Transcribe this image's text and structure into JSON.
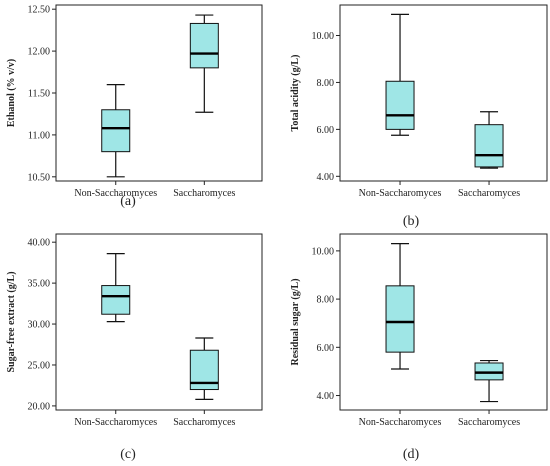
{
  "colors": {
    "box_fill": "#9fe6e6",
    "line": "#111111",
    "frame": "#222222"
  },
  "chart_data": [
    {
      "type": "boxplot",
      "panel_label": "(a)",
      "ylabel": "Ethanol (% v/v)",
      "categories": [
        "Non-Saccharomyces",
        "Saccharomyces"
      ],
      "ylim": [
        10.45,
        12.55
      ],
      "yticks": [
        10.5,
        11.0,
        11.5,
        12.0,
        12.5
      ],
      "tick_labels": [
        "10.50",
        "11.00",
        "11.50",
        "12.00",
        "12.50"
      ],
      "boxes": [
        {
          "min": 10.5,
          "q1": 10.8,
          "median": 11.08,
          "q3": 11.3,
          "max": 11.6
        },
        {
          "min": 11.27,
          "q1": 11.8,
          "median": 11.97,
          "q3": 12.33,
          "max": 12.43
        }
      ]
    },
    {
      "type": "boxplot",
      "panel_label": "(b)",
      "ylabel": "Total acidity (g/L)",
      "categories": [
        "Non-Saccharomyces",
        "Saccharomyces"
      ],
      "ylim": [
        3.8,
        11.3
      ],
      "yticks": [
        4,
        6,
        8,
        10
      ],
      "tick_labels": [
        "4.00",
        "6.00",
        "8.00",
        "10.00"
      ],
      "boxes": [
        {
          "min": 5.75,
          "q1": 6.0,
          "median": 6.6,
          "q3": 8.05,
          "max": 10.9
        },
        {
          "min": 4.35,
          "q1": 4.4,
          "median": 4.9,
          "q3": 6.2,
          "max": 6.75
        }
      ]
    },
    {
      "type": "boxplot",
      "panel_label": "(c)",
      "ylabel": "Sugar-free extract (g/L)",
      "categories": [
        "Non-Saccharomyces",
        "Saccharomyces"
      ],
      "ylim": [
        19.5,
        41.0
      ],
      "yticks": [
        20,
        25,
        30,
        35,
        40
      ],
      "tick_labels": [
        "20.00",
        "25.00",
        "30.00",
        "35.00",
        "40.00"
      ],
      "boxes": [
        {
          "min": 30.3,
          "q1": 31.2,
          "median": 33.4,
          "q3": 34.7,
          "max": 38.6
        },
        {
          "min": 20.8,
          "q1": 22.0,
          "median": 22.8,
          "q3": 26.8,
          "max": 28.3
        }
      ]
    },
    {
      "type": "boxplot",
      "panel_label": "(d)",
      "ylabel": "Residual sugar (g/L)",
      "categories": [
        "Non-Saccharomyces",
        "Saccharomyces"
      ],
      "ylim": [
        3.4,
        10.7
      ],
      "yticks": [
        4,
        6,
        8,
        10
      ],
      "tick_labels": [
        "4.00",
        "6.00",
        "8.00",
        "10.00"
      ],
      "boxes": [
        {
          "min": 5.1,
          "q1": 5.8,
          "median": 7.05,
          "q3": 8.55,
          "max": 10.3
        },
        {
          "min": 3.75,
          "q1": 4.65,
          "median": 4.95,
          "q3": 5.35,
          "max": 5.45
        }
      ]
    }
  ]
}
